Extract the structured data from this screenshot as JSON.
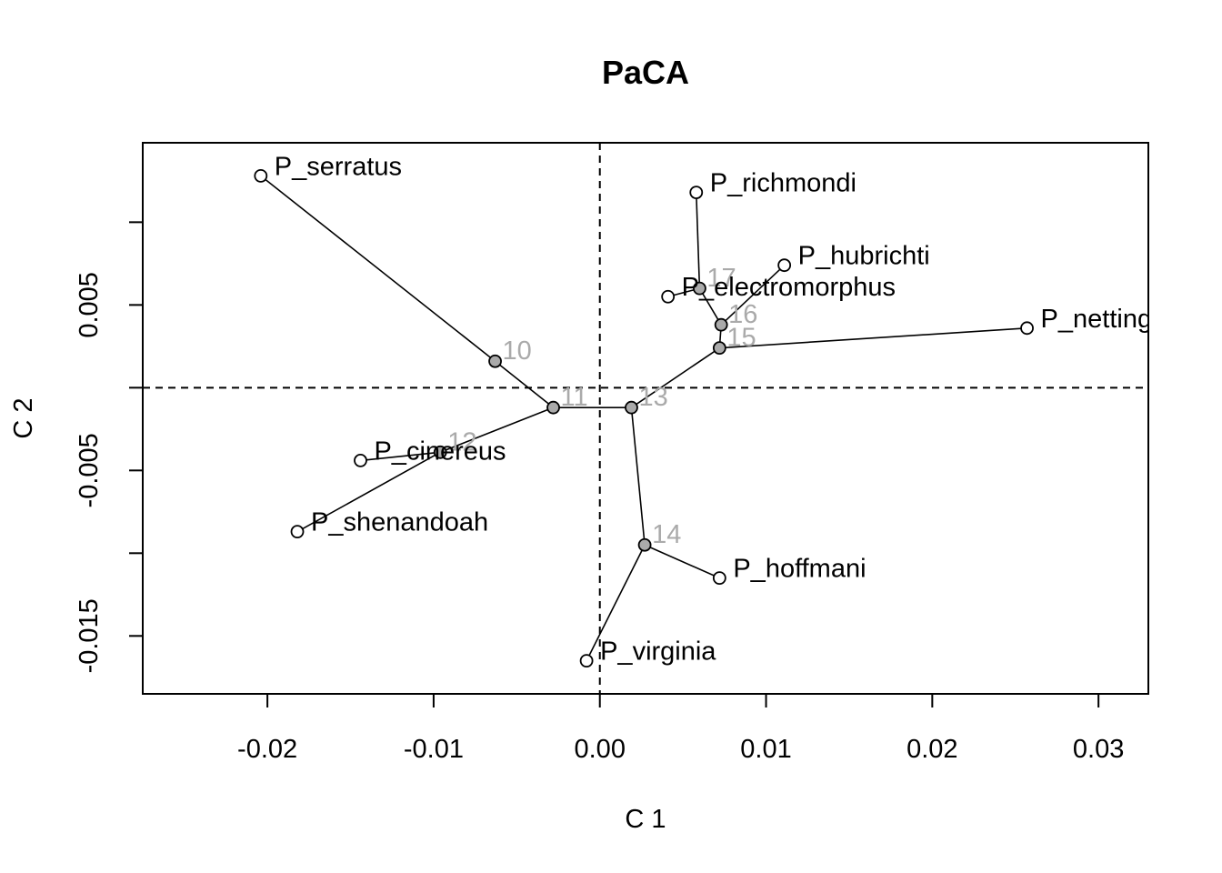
{
  "chart_data": {
    "type": "scatter",
    "title": "PaCA",
    "xlabel": "C 1",
    "ylabel": "C 2",
    "xlim": [
      -0.0275,
      0.033
    ],
    "ylim": [
      -0.0185,
      0.0148
    ],
    "x_ticks": [
      -0.02,
      -0.01,
      0.0,
      0.01,
      0.02,
      0.03
    ],
    "x_tick_labels": [
      "-0.02",
      "-0.01",
      "0.00",
      "0.01",
      "0.02",
      "0.03"
    ],
    "y_ticks": [
      -0.015,
      -0.01,
      -0.005,
      0.0,
      0.005,
      0.01
    ],
    "y_tick_labels": [
      "-0.015",
      "",
      "-0.005",
      "",
      "0.005",
      ""
    ],
    "reference_lines": {
      "x": 0,
      "y": 0,
      "style": "dashed"
    },
    "tips": [
      {
        "id": "P_serratus",
        "label": "P_serratus",
        "x": -0.0204,
        "y": 0.0128
      },
      {
        "id": "P_richmondi",
        "label": "P_richmondi",
        "x": 0.0058,
        "y": 0.0118
      },
      {
        "id": "P_hubrichti",
        "label": "P_hubrichti",
        "x": 0.0111,
        "y": 0.0074
      },
      {
        "id": "P_electromorphus",
        "label": "P_electromorphus",
        "x": 0.0041,
        "y": 0.0055
      },
      {
        "id": "P_netting",
        "label": "P_netting",
        "x": 0.0257,
        "y": 0.0036
      },
      {
        "id": "P_cinereus",
        "label": "P_cinereus",
        "x": -0.0144,
        "y": -0.0044
      },
      {
        "id": "P_shenandoah",
        "label": "P_shenandoah",
        "x": -0.0182,
        "y": -0.0087
      },
      {
        "id": "P_hoffmani",
        "label": "P_hoffmani",
        "x": 0.0072,
        "y": -0.0115
      },
      {
        "id": "P_virginia",
        "label": "P_virginia",
        "x": -0.0008,
        "y": -0.0165
      }
    ],
    "nodes": [
      {
        "id": "10",
        "label": "10",
        "x": -0.0063,
        "y": 0.0016
      },
      {
        "id": "11",
        "label": "11",
        "x": -0.0028,
        "y": -0.0012
      },
      {
        "id": "12",
        "label": "12",
        "x": -0.0096,
        "y": -0.0039
      },
      {
        "id": "13",
        "label": "13",
        "x": 0.0019,
        "y": -0.0012
      },
      {
        "id": "14",
        "label": "14",
        "x": 0.0027,
        "y": -0.0095
      },
      {
        "id": "15",
        "label": "15",
        "x": 0.0072,
        "y": 0.0024
      },
      {
        "id": "16",
        "label": "16",
        "x": 0.0073,
        "y": 0.0038
      },
      {
        "id": "17",
        "label": "17",
        "x": 0.006,
        "y": 0.006
      }
    ],
    "edges": [
      [
        "P_serratus",
        "10"
      ],
      [
        "10",
        "11"
      ],
      [
        "11",
        "12"
      ],
      [
        "12",
        "P_cinereus"
      ],
      [
        "12",
        "P_shenandoah"
      ],
      [
        "11",
        "13"
      ],
      [
        "13",
        "14"
      ],
      [
        "14",
        "P_hoffmani"
      ],
      [
        "14",
        "P_virginia"
      ],
      [
        "13",
        "15"
      ],
      [
        "15",
        "P_netting"
      ],
      [
        "15",
        "16"
      ],
      [
        "16",
        "P_hubrichti"
      ],
      [
        "16",
        "17"
      ],
      [
        "17",
        "P_richmondi"
      ],
      [
        "17",
        "P_electromorphus"
      ]
    ]
  }
}
